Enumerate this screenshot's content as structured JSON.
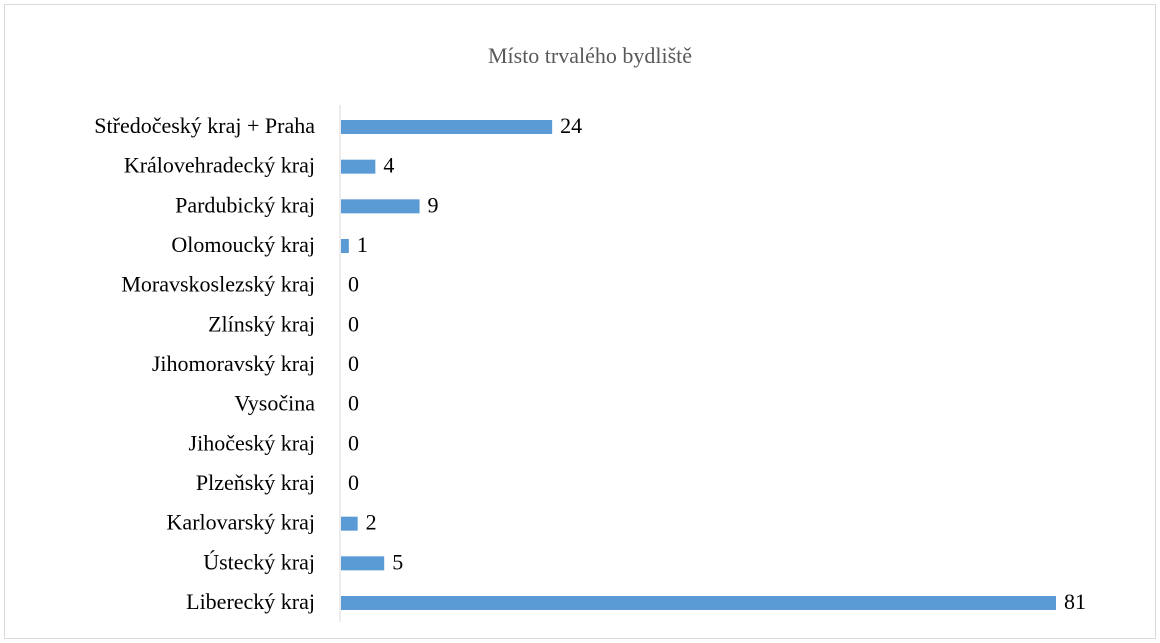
{
  "chart_data": {
    "type": "bar",
    "orientation": "horizontal",
    "title": "Místo trvalého bydliště",
    "categories": [
      "Středočeský kraj + Praha",
      "Královehradecký kraj",
      "Pardubický kraj",
      "Olomoucký kraj",
      "Moravskoslezský kraj",
      "Zlínský kraj",
      "Jihomoravský kraj",
      "Vysočina",
      "Jihočeský kraj",
      "Plzeňský kraj",
      "Karlovarský kraj",
      "Ústecký kraj",
      "Liberecký kraj"
    ],
    "values": [
      24,
      4,
      9,
      1,
      0,
      0,
      0,
      0,
      0,
      0,
      2,
      5,
      81
    ],
    "color": "#5b9bd5"
  }
}
